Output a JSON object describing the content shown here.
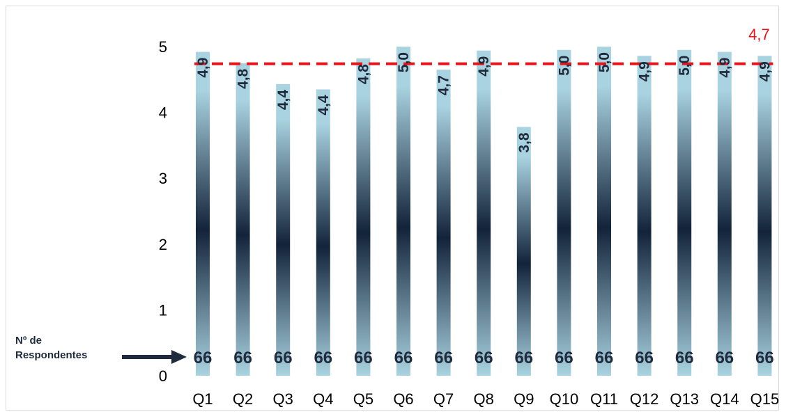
{
  "chart_data": {
    "type": "bar",
    "categories": [
      "Q1",
      "Q2",
      "Q3",
      "Q4",
      "Q5",
      "Q6",
      "Q7",
      "Q8",
      "Q9",
      "Q10",
      "Q11",
      "Q12",
      "Q13",
      "Q14",
      "Q15"
    ],
    "values": [
      4.92,
      4.75,
      4.43,
      4.35,
      4.82,
      5.0,
      4.65,
      4.94,
      3.78,
      4.95,
      5.0,
      4.86,
      4.95,
      4.92,
      4.86
    ],
    "value_labels": [
      "4,9",
      "4,8",
      "4,4",
      "4,4",
      "4,8",
      "5,0",
      "4,7",
      "4,9",
      "3,8",
      "5,0",
      "5,0",
      "4,9",
      "5,0",
      "4,9",
      "4,9"
    ],
    "respondents": [
      "66",
      "66",
      "66",
      "66",
      "66",
      "66",
      "66",
      "66",
      "66",
      "66",
      "66",
      "66",
      "66",
      "66",
      "66"
    ],
    "average": {
      "value": 4.74,
      "label": "4,7",
      "color": "#e8141a"
    },
    "yticks": [
      "0",
      "1",
      "2",
      "3",
      "4",
      "5"
    ],
    "ylim": [
      0,
      5
    ],
    "grid": false,
    "annotation": {
      "line1": "Nº de",
      "line2": "Respondentes"
    },
    "colors": {
      "bar_light": "#a9d3e0",
      "bar_dark": "#12233a",
      "labels": "#1f2b3d"
    }
  }
}
